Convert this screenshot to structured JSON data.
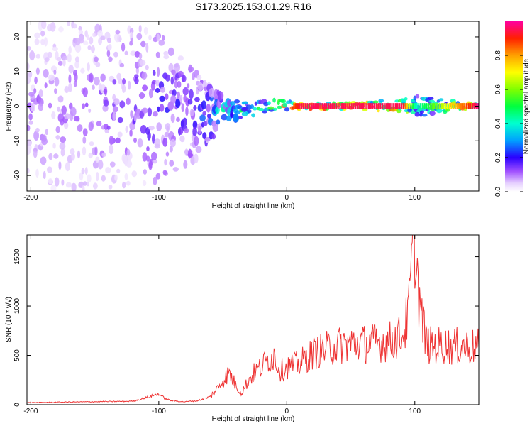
{
  "title": "S173.2025.153.01.29.R16",
  "chart_data": [
    {
      "type": "heatmap",
      "xlabel": "Height of straight line (km)",
      "ylabel": "Frequency (Hz)",
      "xlim": [
        -203,
        150
      ],
      "ylim": [
        -24.5,
        24.5
      ],
      "xticks": [
        -200,
        -100,
        0,
        100
      ],
      "yticks": [
        -20,
        -10,
        0,
        10,
        20
      ],
      "colorbar": {
        "label": "Normalized spectral amplitude",
        "range": [
          0,
          1
        ],
        "ticks": [
          0.0,
          0.2,
          0.4,
          0.6,
          0.8
        ],
        "tick_labels": [
          "0.0",
          "0.2",
          "0.4",
          "0.6",
          "0.8"
        ]
      },
      "description_points": [
        {
          "x": -200,
          "freq_center": 0,
          "freq_spread": 24,
          "amplitude": 0.1
        },
        {
          "x": -150,
          "freq_center": 0,
          "freq_spread": 24,
          "amplitude": 0.12
        },
        {
          "x": -100,
          "freq_center": 0,
          "freq_spread": 22,
          "amplitude": 0.18
        },
        {
          "x": -70,
          "freq_center": -3,
          "freq_spread": 12,
          "amplitude": 0.2
        },
        {
          "x": -50,
          "freq_center": -1,
          "freq_spread": 4,
          "amplitude": 0.35
        },
        {
          "x": -30,
          "freq_center": -1,
          "freq_spread": 2,
          "amplitude": 0.45
        },
        {
          "x": -10,
          "freq_center": 0.5,
          "freq_spread": 1.5,
          "amplitude": 0.6
        },
        {
          "x": 10,
          "freq_center": 0,
          "freq_spread": 1,
          "amplitude": 0.95
        },
        {
          "x": 50,
          "freq_center": 0,
          "freq_spread": 1,
          "amplitude": 0.95
        },
        {
          "x": 90,
          "freq_center": 0,
          "freq_spread": 2,
          "amplitude": 0.95
        },
        {
          "x": 100,
          "freq_center": 0,
          "freq_spread": 3,
          "amplitude": 0.4
        },
        {
          "x": 150,
          "freq_center": 0,
          "freq_spread": 0.5,
          "amplitude": 1.0
        }
      ]
    },
    {
      "type": "line",
      "xlabel": "Height of straight line (km)",
      "ylabel": "SNR (10 * v/v)",
      "xlim": [
        -203,
        150
      ],
      "ylim": [
        0,
        1720
      ],
      "xticks": [
        -200,
        -100,
        0,
        100
      ],
      "yticks": [
        0,
        500,
        1000,
        1500
      ],
      "series": [
        {
          "color": "#ee3333",
          "x": [
            -203,
            -180,
            -150,
            -120,
            -110,
            -100,
            -95,
            -90,
            -80,
            -70,
            -60,
            -55,
            -50,
            -45,
            -40,
            -35,
            -30,
            -25,
            -20,
            -15,
            -10,
            -5,
            0,
            10,
            20,
            30,
            40,
            50,
            60,
            70,
            80,
            90,
            95,
            98,
            100,
            102,
            105,
            108,
            110,
            120,
            130,
            140,
            150
          ],
          "y": [
            20,
            25,
            30,
            35,
            70,
            110,
            60,
            40,
            30,
            40,
            80,
            150,
            250,
            320,
            200,
            120,
            250,
            330,
            380,
            450,
            500,
            350,
            380,
            420,
            520,
            560,
            600,
            620,
            620,
            630,
            640,
            700,
            900,
            1500,
            1720,
            1300,
            900,
            700,
            600,
            600,
            590,
            590,
            580
          ]
        }
      ]
    }
  ]
}
